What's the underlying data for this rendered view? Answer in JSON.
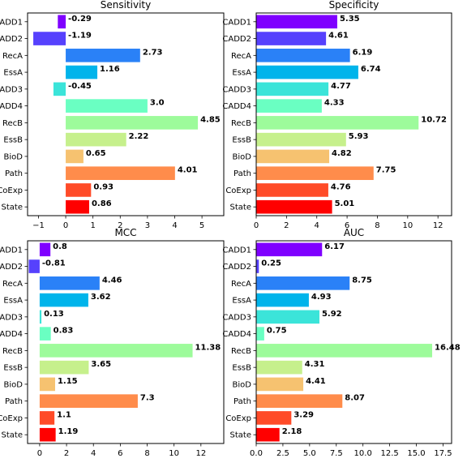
{
  "chart_data": [
    {
      "type": "bar",
      "orientation": "horizontal",
      "title": "Sensitivity",
      "categories": [
        "CADD1",
        "CADD2",
        "RecA",
        "EssA",
        "CADD3",
        "CADD4",
        "RecB",
        "EssB",
        "BioD",
        "Path",
        "CoExp",
        "State"
      ],
      "values": [
        -0.29,
        -1.19,
        2.73,
        1.16,
        -0.45,
        3.0,
        4.85,
        2.22,
        0.65,
        4.01,
        0.93,
        0.86
      ],
      "value_labels": [
        "-0.29",
        "-1.19",
        "2.73",
        "1.16",
        "-0.45",
        "3.0",
        "4.85",
        "2.22",
        "0.65",
        "4.01",
        "0.93",
        "0.86"
      ],
      "xlim": [
        -1.4,
        5.8
      ],
      "xticks": [
        -1,
        0,
        1,
        2,
        3,
        4,
        5
      ],
      "xtick_labels": [
        "−1",
        "0",
        "1",
        "2",
        "3",
        "4",
        "5"
      ],
      "grid": false
    },
    {
      "type": "bar",
      "orientation": "horizontal",
      "title": "Specificity",
      "categories": [
        "CADD1",
        "CADD2",
        "RecA",
        "EssA",
        "CADD3",
        "CADD4",
        "RecB",
        "EssB",
        "BioD",
        "Path",
        "CoExp",
        "State"
      ],
      "values": [
        5.35,
        4.61,
        6.19,
        6.74,
        4.77,
        4.33,
        10.72,
        5.93,
        4.82,
        7.75,
        4.76,
        5.01
      ],
      "value_labels": [
        "5.35",
        "4.61",
        "6.19",
        "6.74",
        "4.77",
        "4.33",
        "10.72",
        "5.93",
        "4.82",
        "7.75",
        "4.76",
        "5.01"
      ],
      "xlim": [
        0,
        12.9
      ],
      "xticks": [
        0,
        2,
        4,
        6,
        8,
        10,
        12
      ],
      "xtick_labels": [
        "0",
        "2",
        "4",
        "6",
        "8",
        "10",
        "12"
      ],
      "grid": false
    },
    {
      "type": "bar",
      "orientation": "horizontal",
      "title": "MCC",
      "categories": [
        "CADD1",
        "CADD2",
        "RecA",
        "EssA",
        "CADD3",
        "CADD4",
        "RecB",
        "EssB",
        "BioD",
        "Path",
        "CoExp",
        "State"
      ],
      "values": [
        0.8,
        -0.81,
        4.46,
        3.62,
        0.13,
        0.83,
        11.38,
        3.65,
        1.15,
        7.3,
        1.1,
        1.19
      ],
      "value_labels": [
        "0.8",
        "-0.81",
        "4.46",
        "3.62",
        "0.13",
        "0.83",
        "11.38",
        "3.65",
        "1.15",
        "7.3",
        "1.1",
        "1.19"
      ],
      "xlim": [
        -0.9,
        13.7
      ],
      "xticks": [
        0,
        2,
        4,
        6,
        8,
        10,
        12
      ],
      "xtick_labels": [
        "0",
        "2",
        "4",
        "6",
        "8",
        "10",
        "12"
      ],
      "grid": false
    },
    {
      "type": "bar",
      "orientation": "horizontal",
      "title": "AUC",
      "categories": [
        "CADD1",
        "CADD2",
        "RecA",
        "EssA",
        "CADD3",
        "CADD4",
        "RecB",
        "EssB",
        "BioD",
        "Path",
        "CoExp",
        "State"
      ],
      "values": [
        6.17,
        0.25,
        8.75,
        4.93,
        5.92,
        0.75,
        16.48,
        4.31,
        4.41,
        8.07,
        3.29,
        2.18
      ],
      "value_labels": [
        "6.17",
        "0.25",
        "8.75",
        "4.93",
        "5.92",
        "0.75",
        "16.48",
        "4.31",
        "4.41",
        "8.07",
        "3.29",
        "2.18"
      ],
      "xlim": [
        0,
        18.3
      ],
      "xticks": [
        0,
        2.5,
        5,
        7.5,
        10,
        12.5,
        15,
        17.5
      ],
      "xtick_labels": [
        "0.0",
        "2.5",
        "5.0",
        "7.5",
        "10.0",
        "12.5",
        "15.0",
        "17.5"
      ],
      "grid": false
    }
  ],
  "bar_colors": [
    "#8000ff",
    "#5641fd",
    "#2c7ef7",
    "#00b5eb",
    "#2adddd",
    "#54f6c4",
    "#80ffb4",
    "#abf6a4",
    "#d4dd80",
    "#ffb360",
    "#ff7e41",
    "#ff0000"
  ],
  "bar_colors_actual": [
    "#7f00ff",
    "#5641fd",
    "#2a81f7",
    "#00b4eb",
    "#3be4d9",
    "#6affc2",
    "#9dfb9b",
    "#c6f08c",
    "#f6c270",
    "#ff8c4b",
    "#ff4b28",
    "#ff0000"
  ]
}
